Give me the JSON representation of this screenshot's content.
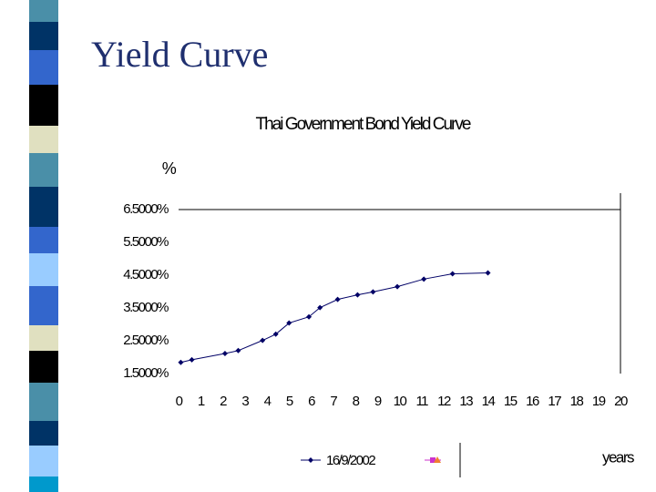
{
  "slide_title": "Yield Curve",
  "chart_data": {
    "type": "line",
    "title": "Thai Government Bond Yield Curve",
    "y_label": "%",
    "x_label": "years",
    "x": [
      0.1,
      0.6,
      2.1,
      2.7,
      3.8,
      4.4,
      5.0,
      5.9,
      6.4,
      7.2,
      8.1,
      8.8,
      9.9,
      11.1,
      12.4,
      14.0
    ],
    "series": [
      {
        "name": "16/9/2002",
        "color": "#000066",
        "values": [
          1.84,
          1.92,
          2.11,
          2.2,
          2.51,
          2.7,
          3.04,
          3.23,
          3.51,
          3.76,
          3.9,
          3.99,
          4.15,
          4.38,
          4.54,
          4.57
        ]
      }
    ],
    "xlim": [
      0,
      20
    ],
    "xticks": [
      0,
      1,
      2,
      3,
      4,
      5,
      6,
      7,
      8,
      9,
      10,
      11,
      12,
      13,
      14,
      15,
      16,
      17,
      18,
      19,
      20
    ],
    "ylim": [
      1.5,
      7.0
    ],
    "yticks": [
      {
        "value": 1.5,
        "label": "1.5000%"
      },
      {
        "value": 2.5,
        "label": "2.5000%"
      },
      {
        "value": 3.5,
        "label": "3.5000%"
      },
      {
        "value": 4.5,
        "label": "4.5000%"
      },
      {
        "value": 5.5,
        "label": "5.5000%"
      },
      {
        "value": 6.5,
        "label": "6.5000%"
      }
    ]
  }
}
